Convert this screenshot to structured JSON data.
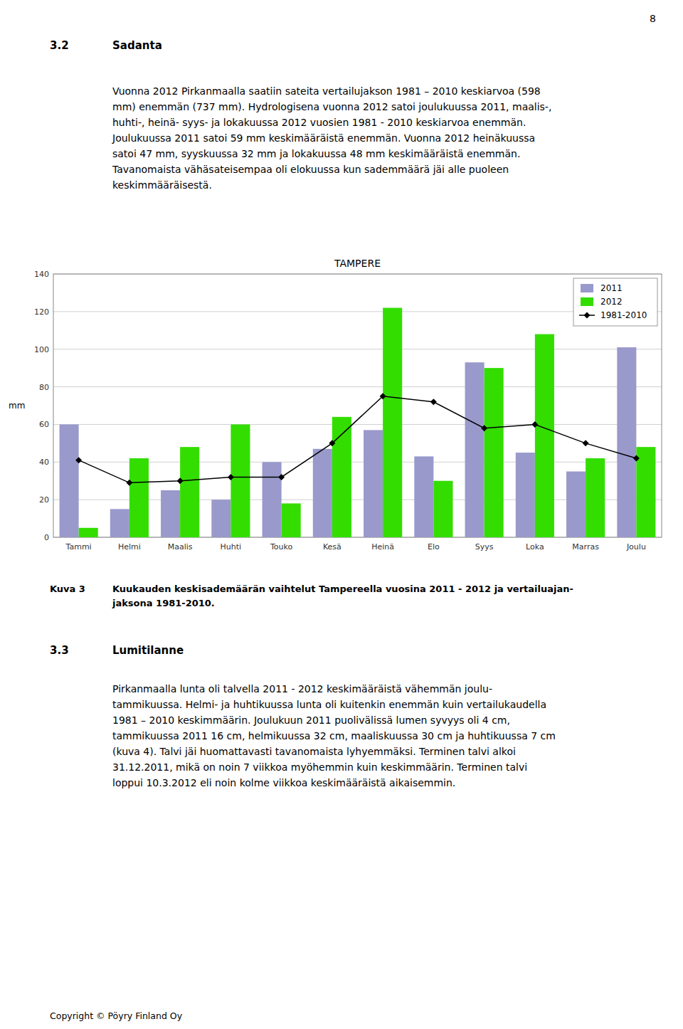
{
  "chart_data": {
    "type": "bar",
    "title": "TAMPERE",
    "categories": [
      "Tammi",
      "Helmi",
      "Maalis",
      "Huhti",
      "Touko",
      "Kesä",
      "Heinä",
      "Elo",
      "Syys",
      "Loka",
      "Marras",
      "Joulu"
    ],
    "series": [
      {
        "name": "2011",
        "color": "#9999cc",
        "values": [
          60,
          15,
          25,
          20,
          40,
          47,
          57,
          43,
          93,
          45,
          35,
          101
        ]
      },
      {
        "name": "2012",
        "color": "#33dd00",
        "values": [
          5,
          42,
          48,
          60,
          18,
          64,
          122,
          30,
          90,
          108,
          42,
          48
        ]
      },
      {
        "name": "1981-2010",
        "type": "line",
        "color": "#000000",
        "marker": "diamond",
        "line_style": "solid",
        "values": [
          41,
          29,
          30,
          32,
          32,
          50,
          75,
          72,
          58,
          60,
          50,
          42
        ]
      }
    ],
    "ylabel": "mm",
    "ylim": [
      0,
      140
    ],
    "yticks": [
      0,
      20,
      40,
      60,
      80,
      100,
      120,
      140
    ],
    "grid": true,
    "legend": "upper right"
  },
  "page": {
    "page_number": "8",
    "sections": [
      {
        "number": "3.2",
        "title": "Sadanta",
        "paragraph": [
          "Vuonna 2012 Pirkanmaalla saatiin sateita vertailujakson 1981 – 2010 keskiarvoa (598",
          "mm) enemmän (737 mm). Hydrologisena vuonna 2012 satoi joulukuussa 2011, maalis-,",
          "huhti-, heinä- syys- ja lokakuussa 2012 vuosien 1981 - 2010 keskiarvoa enemmän.",
          "Joulukuussa 2011 satoi 59 mm keskimääräistä enemmän. Vuonna 2012 heinäkuussa",
          "satoi 47 mm, syyskuussa 32 mm ja lokakuussa 48 mm keskimääräistä enemmän.",
          "Tavanomaista vähäsateisempaa oli elokuussa kun sademmäärä jäi alle puoleen",
          "keskimmääräisestä."
        ]
      },
      {
        "number": "3.3",
        "title": "Lumitilanne",
        "paragraph": [
          "Pirkanmaalla lunta oli talvella 2011 - 2012 keskimääräistä vähemmän joulu-",
          "tammikuussa. Helmi- ja huhtikuussa lunta oli kuitenkin enemmän kuin vertailukaudella",
          "1981 – 2010 keskimmäärin. Joulukuun 2011 puolivälissä lumen syvyys oli 4 cm,",
          "tammikuussa 2011 16 cm, helmikuussa 32 cm, maaliskuussa 30 cm ja huhtikuussa 7 cm",
          "(kuva 4). Talvi jäi huomattavasti tavanomaista lyhyemmäksi. Terminen talvi alkoi",
          "31.12.2011, mikä on noin 7 viikkoa myöhemmin kuin keskimmäärin. Terminen talvi",
          "loppui 10.3.2012 eli noin kolme viikkoa keskimääräistä aikaisemmin."
        ]
      }
    ],
    "caption": {
      "label": "Kuva 3",
      "lines": [
        "Kuukauden keskisademäärän vaihtelut Tampereella vuosina 2011 - 2012 ja vertailuajan-",
        "jaksona 1981-2010."
      ]
    },
    "footer": "Copyright © Pöyry Finland Oy"
  }
}
